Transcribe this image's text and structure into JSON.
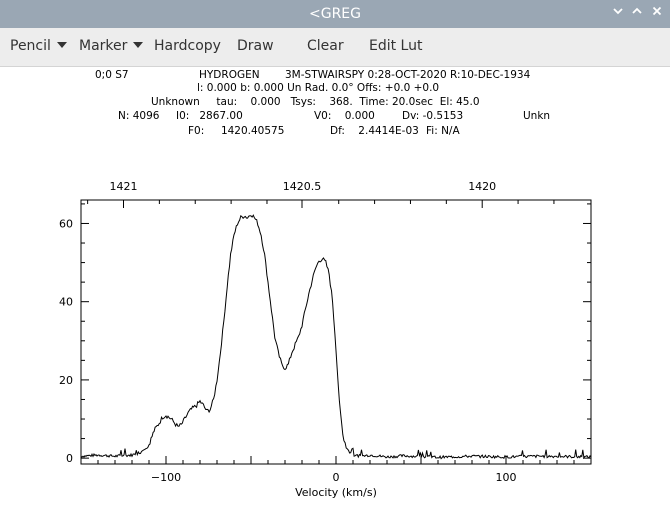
{
  "window": {
    "title": "<GREG",
    "minimize_icon": "chevron-down-icon",
    "maximize_icon": "chevron-up-icon",
    "close_icon": "close-icon"
  },
  "menu": {
    "pencil": "Pencil",
    "marker": "Marker",
    "hardcopy": "Hardcopy",
    "draw": "Draw",
    "clear": "Clear",
    "edit_lut": "Edit Lut"
  },
  "header": {
    "scan": "0;0 S7",
    "source": "HYDROGEN",
    "telescope": "3M-STWAIRSPY 0:28-OCT-2020 R:10-DEC-1934",
    "coords": "l: 0.000 b: 0.000 Un Rad. 0.0° Offs: +0.0 +0.0",
    "line3": "Unknown     tau:    0.000   Tsys:    368.  Time: 20.0sec  El: 45.0",
    "n": "N: 4096",
    "i0": "I0:   2867.00",
    "v0": "V0:    0.000",
    "dv": "Dv: -0.5153",
    "unk": "Unkn",
    "f0": "F0:     1420.40575",
    "df": "Df:    2.4414E-03",
    "fi": "Fi: N/A"
  },
  "chart_data": {
    "type": "line",
    "title": "",
    "xlabel": "Velocity (km/s)",
    "ylabel": "",
    "xlim": [
      -150,
      150
    ],
    "ylim": [
      -1.5,
      66
    ],
    "x_ticks": [
      -100,
      0,
      100
    ],
    "y_ticks": [
      0,
      20,
      40,
      60
    ],
    "top_axis": {
      "label": "",
      "ticks": [
        {
          "label": "1421",
          "velocity": -125
        },
        {
          "label": "1420.5",
          "velocity": -20
        },
        {
          "label": "1420",
          "velocity": 86
        }
      ]
    },
    "grid": false,
    "series": [
      {
        "name": "",
        "x": [
          -150,
          -140,
          -130,
          -120,
          -115,
          -110,
          -107,
          -104,
          -102,
          -100,
          -97,
          -95,
          -93,
          -91,
          -89,
          -87,
          -85,
          -82,
          -80,
          -78,
          -76,
          -74,
          -72,
          -70,
          -68,
          -66,
          -64,
          -62,
          -60,
          -58,
          -56,
          -54,
          -52,
          -50,
          -48,
          -46,
          -44,
          -42,
          -40,
          -38,
          -36,
          -34,
          -32,
          -30,
          -28,
          -26,
          -24,
          -22,
          -20,
          -18,
          -16,
          -14,
          -12,
          -10,
          -8,
          -6,
          -4,
          -2,
          0,
          2,
          4,
          6,
          8,
          10,
          15,
          20,
          30,
          40,
          60,
          80,
          100,
          120,
          150
        ],
        "y": [
          0.5,
          0.8,
          0.5,
          0.8,
          1.5,
          3.5,
          7,
          9,
          10.5,
          11,
          10,
          9,
          8,
          8.5,
          10,
          11.5,
          12.5,
          13.5,
          14.5,
          13.5,
          12,
          12.5,
          15,
          20,
          27,
          35,
          44,
          52,
          57,
          60,
          61.5,
          62,
          61.5,
          62.5,
          61.5,
          60,
          57,
          52,
          45,
          38,
          31,
          27,
          24,
          23,
          24,
          27,
          29,
          31,
          34,
          38,
          42,
          45.5,
          48.5,
          50.5,
          51,
          50,
          47,
          40,
          28,
          14,
          6,
          3,
          1.5,
          0.8,
          0.5,
          0.8,
          0.3,
          0.6,
          0.2,
          0.5,
          0.3,
          0.5,
          0.3
        ]
      }
    ]
  }
}
